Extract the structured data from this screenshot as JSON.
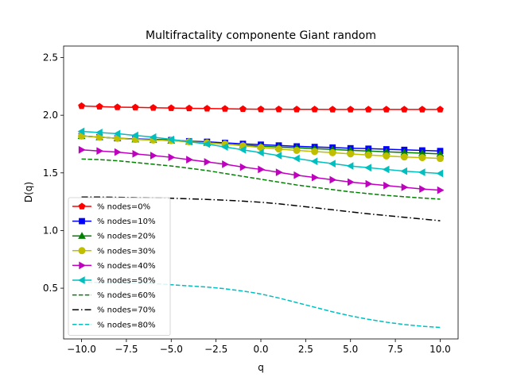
{
  "chart_data": {
    "type": "line",
    "title": "Multifractality componente Giant random",
    "xlabel": "q",
    "ylabel": "D(q)",
    "xlim": [
      -11,
      11
    ],
    "ylim": [
      0.06,
      2.6
    ],
    "xticks": [
      -10.0,
      -7.5,
      -5.0,
      -2.5,
      0.0,
      2.5,
      5.0,
      7.5,
      10.0
    ],
    "xtick_labels": [
      "−10.0",
      "−7.5",
      "−5.0",
      "−2.5",
      "0.0",
      "2.5",
      "5.0",
      "7.5",
      "10.0"
    ],
    "yticks": [
      0.5,
      1.0,
      1.5,
      2.0,
      2.5
    ],
    "ytick_labels": [
      "0.5",
      "1.0",
      "1.5",
      "2.0",
      "2.5"
    ],
    "legend_position": "lower-left",
    "grid": false,
    "x": [
      -10,
      -9,
      -8,
      -7,
      -6,
      -5,
      -4,
      -3,
      -2,
      -1,
      0,
      1,
      2,
      3,
      4,
      5,
      6,
      7,
      8,
      9,
      10
    ],
    "series": [
      {
        "name": "% nodes=0%",
        "color": "#ff0000",
        "marker": "pentagon",
        "linestyle": "solid",
        "values": [
          2.08,
          2.075,
          2.07,
          2.068,
          2.065,
          2.062,
          2.06,
          2.058,
          2.056,
          2.054,
          2.052,
          2.052,
          2.051,
          2.051,
          2.05,
          2.05,
          2.05,
          2.05,
          2.05,
          2.05,
          2.05
        ]
      },
      {
        "name": "% nodes=10%",
        "color": "#0000ff",
        "marker": "square",
        "linestyle": "solid",
        "values": [
          1.82,
          1.81,
          1.8,
          1.795,
          1.79,
          1.785,
          1.775,
          1.77,
          1.76,
          1.752,
          1.745,
          1.738,
          1.73,
          1.725,
          1.72,
          1.714,
          1.71,
          1.705,
          1.7,
          1.695,
          1.69
        ]
      },
      {
        "name": "% nodes=20%",
        "color": "#008000",
        "marker": "triangle-up",
        "linestyle": "solid",
        "values": [
          1.82,
          1.81,
          1.8,
          1.79,
          1.785,
          1.78,
          1.77,
          1.76,
          1.75,
          1.74,
          1.732,
          1.724,
          1.717,
          1.71,
          1.703,
          1.696,
          1.69,
          1.683,
          1.677,
          1.671,
          1.665
        ]
      },
      {
        "name": "% nodes=30%",
        "color": "#bfbf00",
        "marker": "circle",
        "linestyle": "solid",
        "values": [
          1.82,
          1.81,
          1.8,
          1.79,
          1.785,
          1.78,
          1.77,
          1.76,
          1.75,
          1.735,
          1.72,
          1.707,
          1.695,
          1.685,
          1.675,
          1.665,
          1.655,
          1.647,
          1.638,
          1.632,
          1.625
        ]
      },
      {
        "name": "% nodes=40%",
        "color": "#bf00bf",
        "marker": "triangle-right",
        "linestyle": "solid",
        "values": [
          1.7,
          1.69,
          1.68,
          1.665,
          1.65,
          1.635,
          1.615,
          1.595,
          1.575,
          1.55,
          1.53,
          1.505,
          1.48,
          1.46,
          1.44,
          1.42,
          1.405,
          1.39,
          1.375,
          1.36,
          1.35
        ]
      },
      {
        "name": "% nodes=50%",
        "color": "#00bfbf",
        "marker": "triangle-left",
        "linestyle": "solid",
        "values": [
          1.86,
          1.85,
          1.84,
          1.825,
          1.81,
          1.79,
          1.77,
          1.75,
          1.725,
          1.7,
          1.675,
          1.65,
          1.625,
          1.6,
          1.58,
          1.56,
          1.545,
          1.53,
          1.515,
          1.505,
          1.495
        ]
      },
      {
        "name": "% nodes=60%",
        "color": "#008000",
        "marker": "none",
        "linestyle": "dashed",
        "values": [
          1.62,
          1.615,
          1.605,
          1.59,
          1.575,
          1.56,
          1.54,
          1.52,
          1.495,
          1.47,
          1.445,
          1.42,
          1.395,
          1.375,
          1.355,
          1.335,
          1.32,
          1.305,
          1.293,
          1.282,
          1.272
        ]
      },
      {
        "name": "% nodes=70%",
        "color": "#000000",
        "marker": "none",
        "linestyle": "dashdot",
        "values": [
          1.29,
          1.29,
          1.288,
          1.285,
          1.283,
          1.28,
          1.275,
          1.27,
          1.263,
          1.255,
          1.245,
          1.232,
          1.215,
          1.198,
          1.18,
          1.162,
          1.145,
          1.13,
          1.115,
          1.1,
          1.085
        ]
      },
      {
        "name": "% nodes=80%",
        "color": "#00bfbf",
        "marker": "none",
        "linestyle": "dashed",
        "values": [
          0.55,
          0.55,
          0.548,
          0.545,
          0.54,
          0.53,
          0.52,
          0.51,
          0.495,
          0.475,
          0.45,
          0.415,
          0.375,
          0.335,
          0.295,
          0.26,
          0.23,
          0.205,
          0.185,
          0.17,
          0.16
        ]
      }
    ]
  }
}
